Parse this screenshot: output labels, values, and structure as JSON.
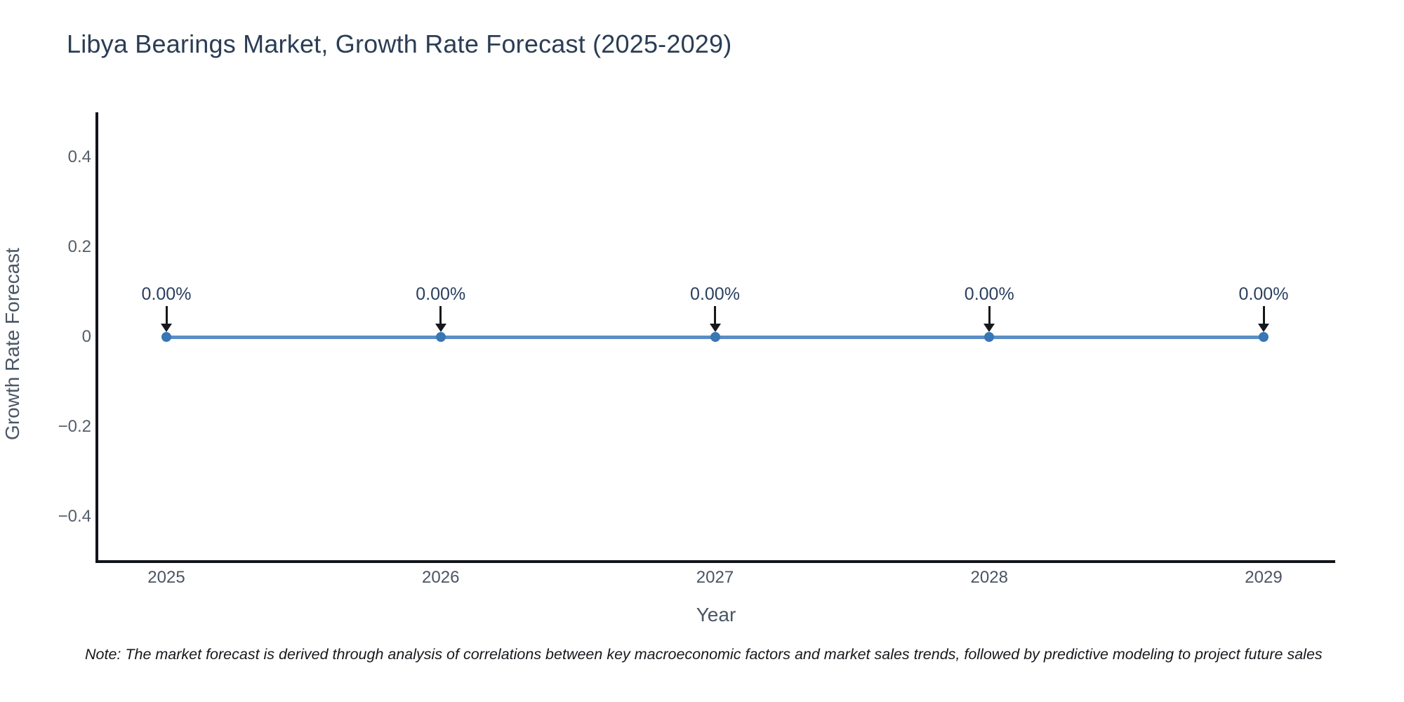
{
  "header": {
    "title": "Libya Bearings Market, Growth Rate Forecast (2025-2029)"
  },
  "footnote": {
    "text": "Note: The market forecast is derived through analysis of correlations between key macroeconomic factors and market sales trends, followed by predictive modeling to project future sales"
  },
  "chart_data": {
    "type": "line",
    "title": "Libya Bearings Market, Growth Rate Forecast (2025-2029)",
    "xlabel": "Year",
    "ylabel": "Growth Rate Forecast",
    "x": [
      2025,
      2026,
      2027,
      2028,
      2029
    ],
    "categories": [
      "2025",
      "2026",
      "2027",
      "2028",
      "2029"
    ],
    "series": [
      {
        "name": "Growth Rate Forecast",
        "values": [
          0,
          0,
          0,
          0,
          0
        ]
      }
    ],
    "point_labels": [
      "0.00%",
      "0.00%",
      "0.00%",
      "0.00%",
      "0.00%"
    ],
    "ylim": [
      -0.5,
      0.5
    ],
    "yticks": {
      "values": [
        0.4,
        0.2,
        0,
        -0.2,
        -0.4
      ],
      "labels": [
        "0.4",
        "0.2",
        "0",
        "−0.2",
        "−0.4"
      ]
    },
    "grid": false,
    "legend": false,
    "annotation_arrow": "down",
    "colors": {
      "line": "#5a8ec5",
      "marker": "#3876b4",
      "axis": "#111418",
      "title_text": "#2b3d55",
      "tick_text": "#555e69",
      "axis_title_text": "#4a5665",
      "annotation_text": "#2a3f5f",
      "arrow": "#16181b",
      "note_text": "#15181c",
      "background": "#ffffff"
    }
  }
}
